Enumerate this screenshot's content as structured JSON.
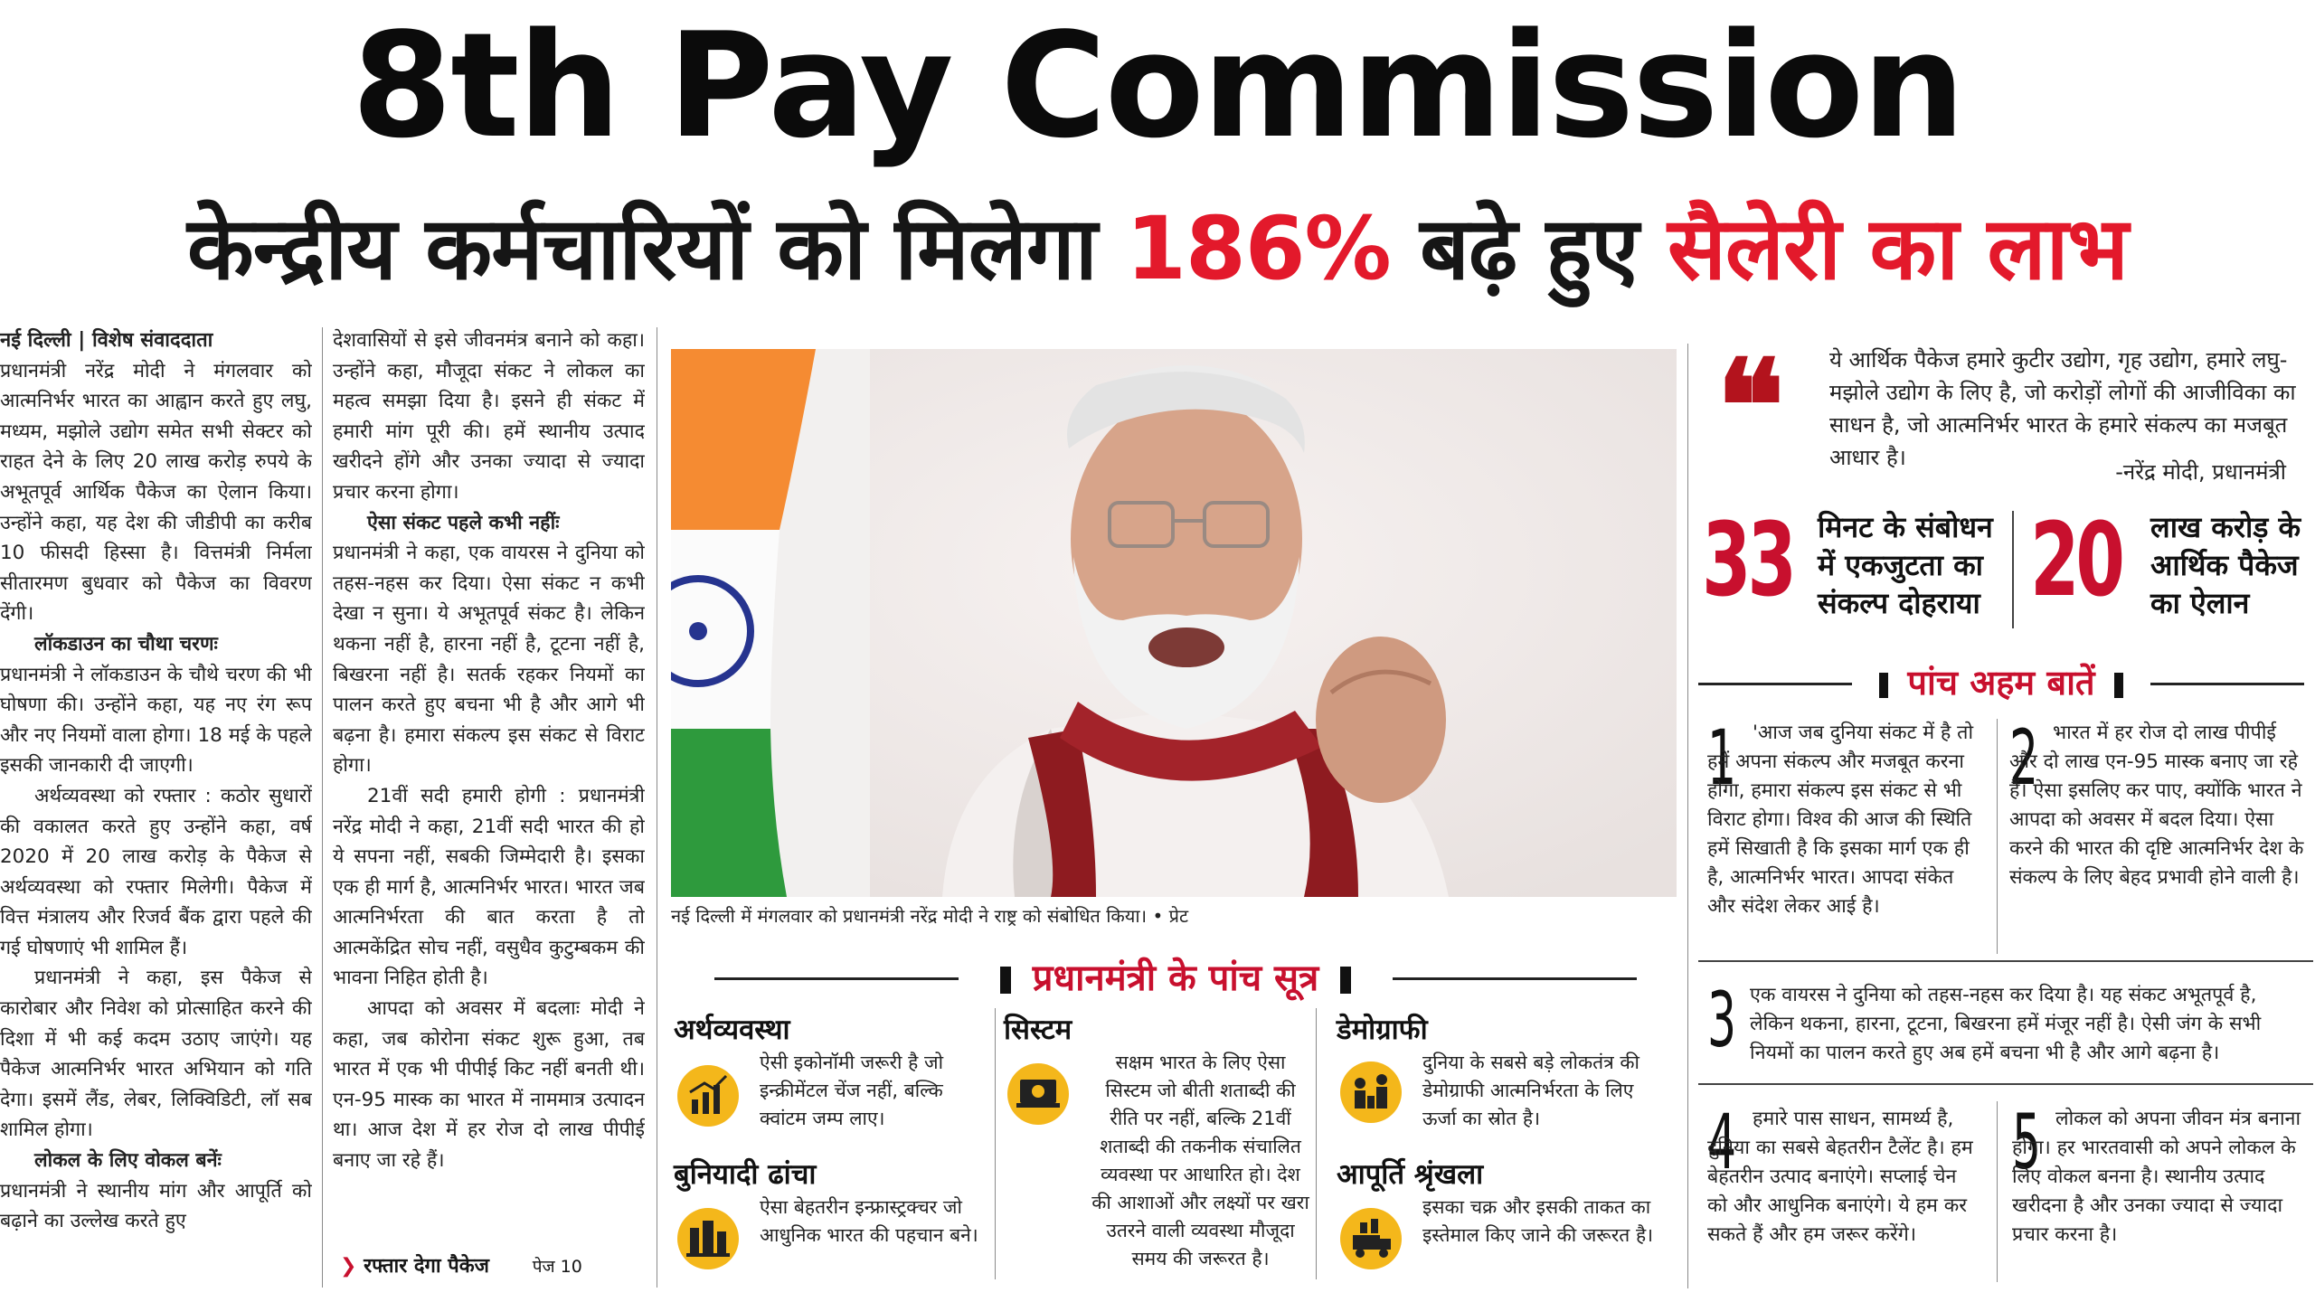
{
  "headline": "8th Pay Commission",
  "subheadline": {
    "part1": "केन्द्रीय कर्मचारियों को मिलेगा ",
    "part2": "186%",
    "part3": " बढ़े हुए ",
    "part4": "सैलेरी का लाभ"
  },
  "dateline": "नई दिल्ली | विशेष संवाददाता",
  "col1": [
    "प्रधानमंत्री नरेंद्र मोदी ने मंगलवार को आत्मनिर्भर भारत का आह्वान करते हुए लघु, मध्यम, मझोले उद्योग समेत सभी सेक्टर को राहत देने के लिए 20 लाख करोड़ रुपये के अभूतपूर्व आर्थिक पैकेज का ऐलान किया। उन्होंने कहा, यह देश की जीडीपी का करीब 10 फीसदी हिस्सा है। वित्तमंत्री निर्मला सीतारमण बुधवार को पैकेज का विवरण देंगी।",
    "लॉकडाउन का चौथा चरणः",
    "प्रधानमंत्री ने लॉकडाउन के चौथे चरण की भी घोषणा की। उन्होंने कहा, यह नए रंग रूप और नए नियमों वाला होगा। 18 मई के पहले इसकी जानकारी दी जाएगी।",
    "अर्थव्यवस्था को रफ्तार : कठोर सुधारों की वकालत करते हुए उन्होंने कहा, वर्ष 2020 में 20 लाख करोड़ के पैकेज से अर्थव्यवस्था को रफ्तार मिलेगी। पैकेज में वित्त मंत्रालय और रिजर्व बैंक द्वारा पहले की गई घोषणाएं भी शामिल हैं।",
    "प्रधानमंत्री ने कहा, इस पैकेज से कारोबार और निवेश को प्रोत्साहित करने की दिशा में भी कई कदम उठाए जाएंगे। यह पैकेज आत्मनिर्भर भारत अभियान को गति देगा। इसमें लैंड, लेबर, लिक्विडिटी, लॉ सब शामिल होगा।",
    "लोकल के लिए वोकल बनेंः",
    "प्रधानमंत्री ने स्थानीय मांग और आपूर्ति को बढ़ाने का उल्लेख करते हुए"
  ],
  "col2": [
    "देशवासियों से इसे जीवनमंत्र बनाने को कहा। उन्होंने कहा, मौजूदा संकट ने लोकल का महत्व समझा दिया है। इसने ही संकट में हमारी मांग पूरी की। हमें स्थानीय उत्पाद खरीदने होंगे और उनका ज्यादा से ज्यादा प्रचार करना होगा।",
    "ऐसा संकट पहले कभी नहींः",
    "प्रधानमंत्री ने कहा, एक वायरस ने दुनिया को तहस-नहस कर दिया। ऐसा संकट न कभी देखा न सुना। ये अभूतपूर्व संकट है। लेकिन थकना नहीं है, हारना नहीं है, टूटना नहीं है, बिखरना नहीं है। सतर्क रहकर नियमों का पालन करते हुए बचना भी है और आगे भी बढ़ना है। हमारा संकल्प इस संकट से विराट होगा।",
    "21वीं सदी हमारी होगी : प्रधानमंत्री नरेंद्र मोदी ने कहा, 21वीं सदी भारत की हो ये सपना नहीं, सबकी जिम्मेदारी है। इसका एक ही मार्ग है, आत्मनिर्भर भारत। भारत जब आत्मनिर्भरता की बात करता है तो आत्मकेंद्रित सोच नहीं, वसुधैव कुटुम्बकम की भावना निहित होती है।",
    "आपदा को अवसर में बदलाः मोदी ने कहा, जब कोरोना संकट शुरू हुआ, तब भारत में एक भी पीपीई किट नहीं बनती थी। एन-95 मास्क का भारत में नाममात्र उत्पादन था। आज देश में हर रोज दो लाख पीपीई बनाए जा रहे हैं।"
  ],
  "col2_footer": {
    "link": "रफ्तार देगा पैकेज",
    "page": "पेज 10"
  },
  "caption": "नई दिल्ली में मंगलवार को प्रधानमंत्री नरेंद्र मोदी ने राष्ट्र को संबोधित किया। • प्रेट",
  "sutra_title": "प्रधानमंत्री के पांच सूत्र",
  "sutras": [
    {
      "heading": "अर्थव्यवस्था",
      "body": "ऐसी इकोनॉमी जरूरी है जो इन्क्रीमेंटल चेंज नहीं, बल्कि क्वांटम जम्प लाए।",
      "icon": "growth-chart-icon"
    },
    {
      "heading": "सिस्टम",
      "body": "सक्षम भारत के लिए ऐसा सिस्टम जो बीती शताब्दी की रीति पर नहीं, बल्कि 21वीं शताब्दी की तकनीक संचालित व्यवस्था पर आधारित हो। देश की आशाओं और लक्ष्यों पर खरा उतरने वाली व्यवस्था मौजूदा समय की जरूरत है।",
      "icon": "laptop-gear-icon"
    },
    {
      "heading": "डेमोग्राफी",
      "body": "दुनिया के सबसे बड़े लोकतंत्र की डेमोग्राफी आत्मनिर्भरता के लिए ऊर्जा का स्रोत है।",
      "icon": "people-icon"
    },
    {
      "heading": "बुनियादी ढांचा",
      "body": "ऐसा बेहतरीन इन्फ्रास्ट्रक्चर जो आधुनिक भारत की पहचान बने।",
      "icon": "infrastructure-icon"
    },
    {
      "heading": "आपूर्ति श्रृंखला",
      "body": "इसका चक्र और इसकी ताकत का इस्तेमाल किए जाने की जरूरत है।",
      "icon": "supply-chain-icon"
    }
  ],
  "quote": {
    "text": "ये आर्थिक पैकेज हमारे कुटीर उद्योग, गृह उद्योग, हमारे लघु-मझोले उद्योग के लिए है, जो करोड़ों लोगों की आजीविका का साधन है, जो आत्मनिर्भर भारत के हमारे संकल्प का मजबूत आधार है।",
    "attribution": "-नरेंद्र मोदी, प्रधानमंत्री"
  },
  "stats": [
    {
      "number": "33",
      "text": "मिनट के संबोधन में एकजुटता का संकल्प दोहराया"
    },
    {
      "number": "20",
      "text": "लाख करोड़ के आर्थिक पैकेज का ऐलान"
    }
  ],
  "five_title": "पांच अहम बातें",
  "points": [
    {
      "num": "1",
      "text": "'आज जब दुनिया संकट में है तो हमें अपना संकल्प और मजबूत करना होगा, हमारा संकल्प इस संकट से भी विराट होगा। विश्व की आज की स्थिति हमें सिखाती है कि इसका मार्ग एक ही है, आत्मनिर्भर भारत। आपदा संकेत और संदेश लेकर आई है।"
    },
    {
      "num": "2",
      "text": "भारत में हर रोज दो लाख पीपीई और दो लाख एन-95 मास्क बनाए जा रहे हैं। ऐसा इसलिए कर पाए, क्योंकि भारत ने आपदा को अवसर में बदल दिया। ऐसा करने की भारत की दृष्टि आत्मनिर्भर देश के संकल्प के लिए बेहद प्रभावी होने वाली है।"
    },
    {
      "num": "3",
      "text": "एक वायरस ने दुनिया को तहस-नहस कर दिया है। यह संकट अभूतपूर्व है, लेकिन थकना, हारना, टूटना, बिखरना हमें मंजूर नहीं है। ऐसी जंग के सभी नियमों का पालन करते हुए अब हमें बचना भी है और आगे बढ़ना है।"
    },
    {
      "num": "4",
      "text": "हमारे पास साधन, सामर्थ्य है, दुनिया का सबसे बेहतरीन टैलेंट है। हम बेहतरीन उत्पाद बनाएंगे। सप्लाई चेन को और आधुनिक बनाएंगे। ये हम कर सकते हैं और हम जरूर करेंगे।"
    },
    {
      "num": "5",
      "text": "लोकल को अपना जीवन मंत्र बनाना होगा। हर भारतवासी को अपने लोकल के लिए वोकल बनना है। स्थानीय उत्पाद खरीदना है और उनका ज्यादा से ज्यादा प्रचार करना है।"
    }
  ]
}
